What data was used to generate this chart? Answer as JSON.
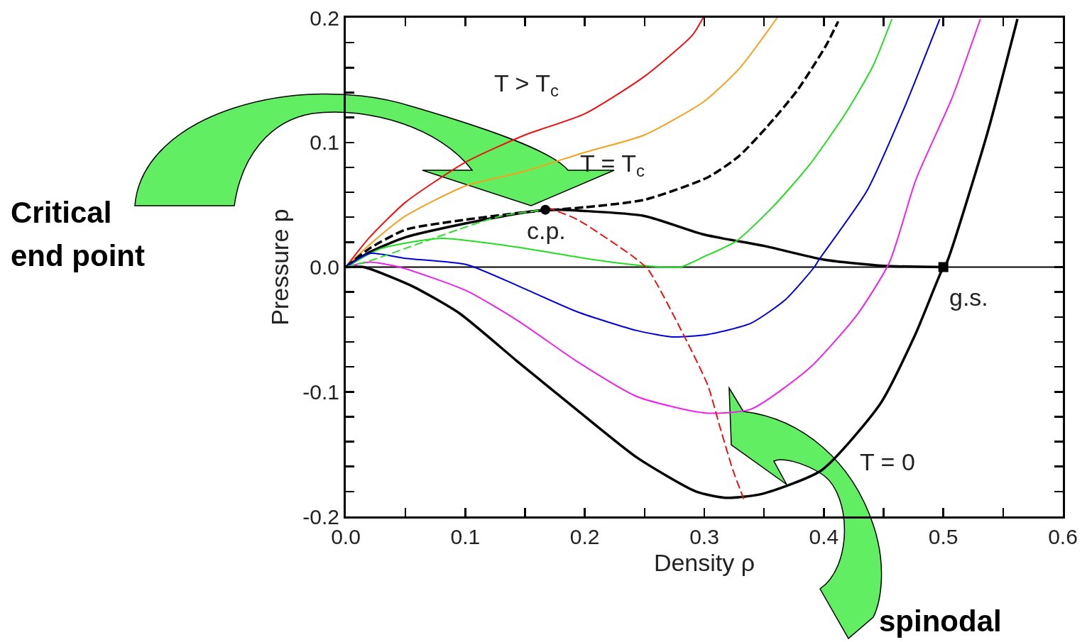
{
  "chart_data": {
    "type": "line",
    "xlabel": "Density ρ",
    "ylabel": "Pressure p",
    "xlim": [
      0,
      0.6
    ],
    "ylim": [
      -0.2,
      0.2
    ],
    "xticks": [
      {
        "value": 0,
        "label": "0.0"
      },
      {
        "value": 0.05,
        "label": null
      },
      0.1,
      {
        "value": 0.15,
        "label": null
      },
      0.2,
      {
        "value": 0.25,
        "label": null
      },
      0.3,
      {
        "value": 0.35,
        "label": null
      },
      0.4,
      {
        "value": 0.45,
        "label": null
      },
      0.5,
      {
        "value": 0.55,
        "label": null
      },
      0.6
    ],
    "yticks": [
      -0.2,
      {
        "value": -0.18,
        "label": null
      },
      {
        "value": -0.16,
        "label": null
      },
      {
        "value": -0.14,
        "label": null
      },
      {
        "value": -0.12,
        "label": null
      },
      -0.1,
      {
        "value": -0.08,
        "label": null
      },
      {
        "value": -0.06,
        "label": null
      },
      {
        "value": -0.04,
        "label": null
      },
      {
        "value": -0.02,
        "label": null
      },
      {
        "value": 0,
        "label": "0.0"
      },
      {
        "value": 0.02,
        "label": null
      },
      {
        "value": 0.04,
        "label": null
      },
      {
        "value": 0.06,
        "label": null
      },
      {
        "value": 0.08,
        "label": null
      },
      0.1,
      {
        "value": 0.12,
        "label": null
      },
      {
        "value": 0.14,
        "label": null
      },
      {
        "value": 0.16,
        "label": null
      },
      {
        "value": 0.18,
        "label": null
      },
      0.2
    ],
    "grid": false,
    "ref_lines": [
      {
        "axis": "y",
        "value": 0,
        "color": "#000000"
      }
    ],
    "series": [
      {
        "color": "#ee1111",
        "line_style": "solid",
        "x": [
          0,
          0.02,
          0.05,
          0.1,
          0.15,
          0.2,
          0.25,
          0.29,
          0.299
        ],
        "values": [
          0,
          0.024,
          0.052,
          0.084,
          0.106,
          0.123,
          0.153,
          0.186,
          0.2
        ]
      },
      {
        "color": "#f5a020",
        "line_style": "solid",
        "x": [
          0,
          0.02,
          0.05,
          0.1,
          0.15,
          0.2,
          0.25,
          0.3,
          0.33,
          0.361
        ],
        "values": [
          0,
          0.018,
          0.041,
          0.065,
          0.077,
          0.092,
          0.106,
          0.133,
          0.16,
          0.2
        ]
      },
      {
        "color": "#000000",
        "line_style": "dashed",
        "x": [
          0,
          0.02,
          0.05,
          0.1,
          0.15,
          0.2,
          0.25,
          0.303,
          0.329,
          0.352,
          0.378,
          0.402,
          0.412
        ],
        "values": [
          0,
          0.015,
          0.03,
          0.038,
          0.044,
          0.048,
          0.054,
          0.072,
          0.089,
          0.112,
          0.142,
          0.178,
          0.197
        ]
      },
      {
        "color": "#000000",
        "line_style": "solid",
        "x": [
          0,
          0.02,
          0.05,
          0.1,
          0.15,
          0.17,
          0.2,
          0.25,
          0.3,
          0.35,
          0.4,
          0.45,
          0.5
        ],
        "values": [
          0,
          0.012,
          0.024,
          0.035,
          0.044,
          0.046,
          0.045,
          0.041,
          0.026,
          0.017,
          0.006,
          0.001,
          0
        ]
      },
      {
        "color": "#22dd22",
        "line_style": "solid",
        "x": [
          0,
          0.03,
          0.08,
          0.15,
          0.2,
          0.25,
          0.28,
          0.299,
          0.327,
          0.358,
          0.388,
          0.418,
          0.441,
          0.457
        ],
        "values": [
          0,
          0.015,
          0.023,
          0.015,
          0.007,
          0.001,
          0,
          0.008,
          0.021,
          0.049,
          0.082,
          0.123,
          0.161,
          0.199
        ]
      },
      {
        "color": "#0000dd",
        "line_style": "solid",
        "x": [
          0,
          0.02,
          0.05,
          0.101,
          0.144,
          0.194,
          0.244,
          0.273,
          0.303,
          0.339,
          0.368,
          0.392,
          0.396,
          0.436,
          0.467,
          0.497
        ],
        "values": [
          0,
          0.011,
          0.007,
          0.002,
          -0.015,
          -0.036,
          -0.051,
          -0.056,
          -0.054,
          -0.045,
          -0.026,
          0,
          0.006,
          0.061,
          0.127,
          0.199
        ]
      },
      {
        "color": "#ee22ee",
        "line_style": "solid",
        "x": [
          0,
          0.02,
          0.045,
          0.101,
          0.144,
          0.194,
          0.244,
          0.301,
          0.339,
          0.388,
          0.428,
          0.455,
          0.477,
          0.507,
          0.531
        ],
        "values": [
          0,
          0.004,
          0,
          -0.019,
          -0.043,
          -0.076,
          -0.104,
          -0.117,
          -0.114,
          -0.081,
          -0.038,
          0.004,
          0.07,
          0.135,
          0.199
        ]
      },
      {
        "color": "#000000",
        "line_style": "solid",
        "x": [
          0,
          0.015,
          0.055,
          0.095,
          0.144,
          0.194,
          0.244,
          0.293,
          0.318,
          0.348,
          0.398,
          0.447,
          0.477,
          0.499,
          0.503,
          0.537,
          0.562
        ],
        "values": [
          0,
          0,
          -0.015,
          -0.037,
          -0.076,
          -0.115,
          -0.153,
          -0.18,
          -0.185,
          -0.182,
          -0.163,
          -0.11,
          -0.053,
          -0.002,
          0.004,
          0.108,
          0.199
        ]
      },
      {
        "color": "#ee1111",
        "line_style": "dashed",
        "x": [
          0.168,
          0.194,
          0.241,
          0.253,
          0.283,
          0.303,
          0.313,
          0.324,
          0.333
        ],
        "values": [
          0.048,
          0.038,
          0.008,
          -0.002,
          -0.055,
          -0.095,
          -0.128,
          -0.163,
          -0.186
        ]
      },
      {
        "color": "#33dd33",
        "line_style": "dashed",
        "x": [
          0,
          0.02,
          0.05,
          0.1,
          0.13,
          0.167
        ],
        "values": [
          0,
          0.005,
          0.015,
          0.032,
          0.041,
          0.046
        ]
      },
      {
        "type": "scatter",
        "marker": "circle",
        "color": "#000000",
        "x": [
          0.167
        ],
        "values": [
          0.046
        ]
      },
      {
        "type": "scatter",
        "marker": "square",
        "color": "#000000",
        "x": [
          0.5
        ],
        "values": [
          0
        ]
      }
    ],
    "annotations": [
      "T > T$_{c}$",
      "T = T$_{c}$",
      "c.p.",
      "g.s.",
      "T = 0",
      "Critical end point",
      "spinodal"
    ]
  }
}
